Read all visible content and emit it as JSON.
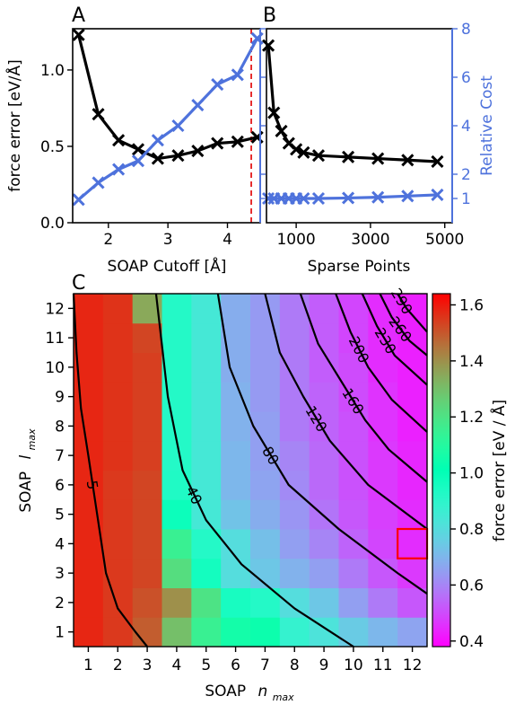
{
  "chart_data": [
    {
      "panel": "A",
      "type": "line",
      "xlabel": "SOAP Cutoff [Å]",
      "ylabel": "force error [eV/Å]",
      "xlim": [
        1.4,
        4.55
      ],
      "ylim": [
        0,
        1.27
      ],
      "xticks": [
        2,
        3,
        4
      ],
      "yticks": [
        0.0,
        0.5,
        1.0
      ],
      "ytick_labels": [
        "0.0",
        "0.5",
        "1.0"
      ],
      "right_ylim": [
        0,
        8
      ],
      "right_yticks": [
        1,
        2,
        4,
        6,
        8
      ],
      "series": [
        {
          "name": "",
          "axis": "left",
          "color": "#000000",
          "x": [
            1.5,
            1.83,
            2.17,
            2.5,
            2.83,
            3.17,
            3.5,
            3.83,
            4.17,
            4.5
          ],
          "y": [
            1.23,
            0.71,
            0.54,
            0.48,
            0.42,
            0.44,
            0.47,
            0.52,
            0.53,
            0.56
          ]
        },
        {
          "name": "",
          "axis": "right",
          "color": "#4e72dc",
          "x": [
            1.5,
            1.83,
            2.17,
            2.5,
            2.83,
            3.17,
            3.5,
            3.83,
            4.17,
            4.5
          ],
          "y": [
            0.95,
            1.65,
            2.2,
            2.55,
            3.4,
            4.0,
            4.85,
            5.7,
            6.1,
            7.6
          ]
        }
      ],
      "annotations": [
        {
          "type": "vline",
          "x": 4.4,
          "color": "#e41a1c",
          "style": "dashed"
        }
      ]
    },
    {
      "panel": "B",
      "type": "line",
      "xlabel": "Sparse Points",
      "ylabel": "",
      "xlim": [
        200,
        5200
      ],
      "ylim": [
        0,
        1.27
      ],
      "xticks": [
        1000,
        3000,
        5000
      ],
      "right_ylabel": "Relative Cost",
      "right_ylim": [
        0,
        8
      ],
      "right_yticks": [
        1,
        2,
        4,
        6,
        8
      ],
      "series": [
        {
          "name": "",
          "axis": "left",
          "color": "#000000",
          "x": [
            250,
            400,
            600,
            800,
            1000,
            1200,
            1600,
            2400,
            3200,
            4000,
            4800
          ],
          "y": [
            1.16,
            0.72,
            0.6,
            0.52,
            0.48,
            0.46,
            0.44,
            0.43,
            0.42,
            0.41,
            0.4
          ]
        },
        {
          "name": "",
          "axis": "right",
          "color": "#4e72dc",
          "x": [
            250,
            400,
            600,
            800,
            1000,
            1200,
            1600,
            2400,
            3200,
            4000,
            4800
          ],
          "y": [
            1.0,
            1.0,
            1.0,
            1.0,
            1.0,
            1.0,
            1.0,
            1.02,
            1.05,
            1.1,
            1.15
          ]
        }
      ]
    },
    {
      "panel": "C",
      "type": "heatmap",
      "xlabel_main": "SOAP",
      "xlabel_var": "n",
      "xlabel_sub": "max",
      "ylabel_main": "SOAP",
      "ylabel_var": "l",
      "ylabel_sub": "max",
      "x_categories": [
        1,
        2,
        3,
        4,
        5,
        6,
        7,
        8,
        9,
        10,
        11,
        12
      ],
      "y_categories": [
        1,
        2,
        3,
        4,
        5,
        6,
        7,
        8,
        9,
        10,
        11,
        12
      ],
      "colorbar_label": "force error [eV / Å]",
      "colorbar_range": [
        0.38,
        1.64
      ],
      "colorbar_ticks": [
        0.4,
        0.6,
        0.8,
        1.0,
        1.2,
        1.4,
        1.6
      ],
      "colorbar_tick_labels": [
        "0.4",
        "0.6",
        "0.8",
        "1.0",
        "1.2",
        "1.4",
        "1.6"
      ],
      "colormap": "rainbow",
      "values": [
        [
          1.58,
          1.55,
          1.49,
          1.3,
          1.15,
          1.06,
          1.04,
          0.88,
          0.82,
          0.75,
          0.7,
          0.66
        ],
        [
          1.58,
          1.55,
          1.51,
          1.4,
          1.2,
          0.95,
          0.92,
          0.8,
          0.74,
          0.65,
          0.58,
          0.52
        ],
        [
          1.58,
          1.55,
          1.53,
          1.22,
          0.96,
          0.8,
          0.74,
          0.69,
          0.65,
          0.58,
          0.52,
          0.47
        ],
        [
          1.58,
          1.55,
          1.53,
          1.15,
          0.92,
          0.8,
          0.72,
          0.65,
          0.6,
          0.54,
          0.49,
          0.45
        ],
        [
          1.58,
          1.55,
          1.53,
          0.98,
          0.84,
          0.73,
          0.68,
          0.63,
          0.57,
          0.52,
          0.48,
          0.45
        ],
        [
          1.58,
          1.55,
          1.53,
          0.93,
          0.84,
          0.7,
          0.66,
          0.61,
          0.55,
          0.51,
          0.47,
          0.44
        ],
        [
          1.58,
          1.56,
          1.54,
          0.92,
          0.84,
          0.7,
          0.65,
          0.6,
          0.55,
          0.51,
          0.47,
          0.44
        ],
        [
          1.58,
          1.56,
          1.54,
          0.92,
          0.84,
          0.69,
          0.65,
          0.58,
          0.54,
          0.51,
          0.46,
          0.43
        ],
        [
          1.58,
          1.56,
          1.54,
          0.92,
          0.84,
          0.69,
          0.64,
          0.58,
          0.54,
          0.5,
          0.46,
          0.43
        ],
        [
          1.58,
          1.56,
          1.54,
          0.92,
          0.84,
          0.68,
          0.64,
          0.58,
          0.53,
          0.5,
          0.45,
          0.43
        ],
        [
          1.58,
          1.56,
          1.53,
          0.92,
          0.84,
          0.68,
          0.64,
          0.58,
          0.53,
          0.49,
          0.45,
          0.43
        ],
        [
          1.58,
          1.56,
          1.35,
          0.92,
          0.84,
          0.68,
          0.64,
          0.58,
          0.53,
          0.49,
          0.45,
          0.43
        ]
      ],
      "contour_levels": [
        {
          "label": "5",
          "points": [
            [
              0.5,
              12.5
            ],
            [
              0.6,
              10.5
            ],
            [
              0.75,
              8.6
            ],
            [
              1.0,
              7.0
            ],
            [
              1.3,
              5.0
            ],
            [
              1.6,
              3.0
            ],
            [
              2.0,
              1.8
            ],
            [
              2.6,
              1.0
            ],
            [
              3.0,
              0.5
            ]
          ]
        },
        {
          "label": "40",
          "points": [
            [
              3.3,
              12.5
            ],
            [
              3.7,
              9.0
            ],
            [
              4.2,
              6.5
            ],
            [
              5.0,
              4.8
            ],
            [
              6.2,
              3.3
            ],
            [
              8.0,
              1.8
            ],
            [
              10.0,
              0.5
            ]
          ]
        },
        {
          "label": "80",
          "points": [
            [
              5.4,
              12.5
            ],
            [
              5.8,
              10.0
            ],
            [
              6.6,
              8.0
            ],
            [
              7.8,
              6.0
            ],
            [
              9.5,
              4.5
            ],
            [
              11.5,
              3.0
            ],
            [
              12.5,
              2.3
            ]
          ]
        },
        {
          "label": "120",
          "points": [
            [
              7.0,
              12.5
            ],
            [
              7.5,
              10.5
            ],
            [
              8.3,
              9.0
            ],
            [
              9.2,
              7.5
            ],
            [
              10.5,
              6.0
            ],
            [
              12.5,
              4.5
            ]
          ]
        },
        {
          "label": "160",
          "points": [
            [
              8.2,
              12.5
            ],
            [
              8.8,
              10.8
            ],
            [
              9.6,
              9.5
            ],
            [
              10.4,
              8.2
            ],
            [
              11.2,
              7.2
            ],
            [
              12.5,
              6.1
            ]
          ]
        },
        {
          "label": "200",
          "points": [
            [
              9.4,
              12.5
            ],
            [
              9.9,
              11.2
            ],
            [
              10.5,
              10.0
            ],
            [
              11.3,
              8.9
            ],
            [
              12.5,
              7.8
            ]
          ]
        },
        {
          "label": "230",
          "points": [
            [
              10.3,
              12.5
            ],
            [
              10.8,
              11.4
            ],
            [
              11.4,
              10.4
            ],
            [
              12.5,
              9.4
            ]
          ]
        },
        {
          "label": "260",
          "points": [
            [
              10.9,
              12.5
            ],
            [
              11.3,
              11.7
            ],
            [
              11.9,
              10.9
            ],
            [
              12.5,
              10.4
            ]
          ]
        },
        {
          "label": "290",
          "points": [
            [
              11.5,
              12.5
            ],
            [
              11.8,
              12.0
            ],
            [
              12.5,
              11.2
            ]
          ]
        }
      ],
      "highlight": {
        "n": 12,
        "l": 4,
        "color": "#ff0000"
      }
    }
  ],
  "panel_labels": [
    "A",
    "B",
    "C"
  ]
}
